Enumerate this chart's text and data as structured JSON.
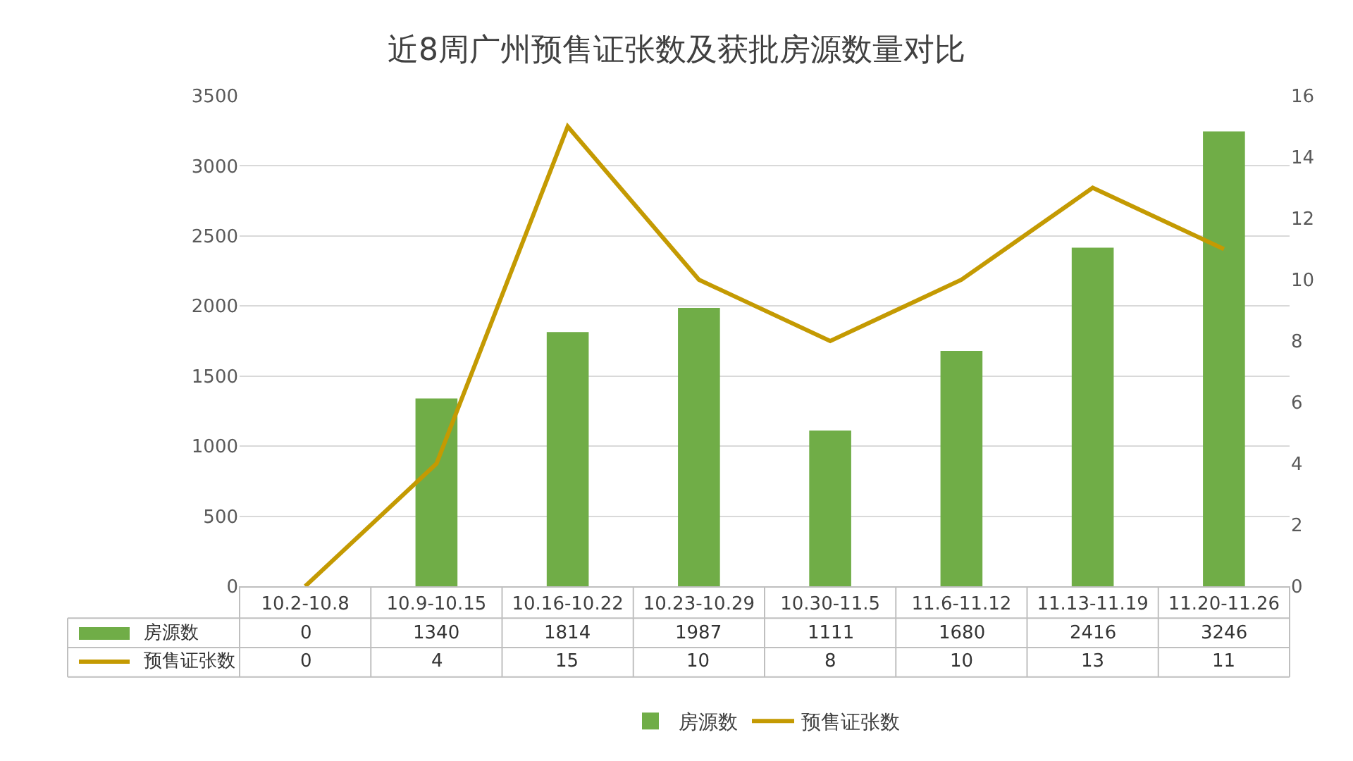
{
  "chart_data": {
    "type": "bar",
    "title": "近8周广州预售证张数及获批房源数量对比",
    "categories": [
      "10.2-10.8",
      "10.9-10.15",
      "10.16-10.22",
      "10.23-10.29",
      "10.30-11.5",
      "11.6-11.12",
      "11.13-11.19",
      "11.20-11.26"
    ],
    "series": [
      {
        "name": "房源数",
        "color": "#70ad47",
        "values": [
          0,
          1340,
          1814,
          1987,
          1111,
          1680,
          2416,
          3246
        ]
      },
      {
        "name": "预售证张数",
        "type": "line",
        "axis": "y2",
        "color": "#c49a02",
        "values": [
          0,
          4,
          15,
          10,
          8,
          10,
          13,
          11
        ]
      }
    ],
    "ylim": [
      0,
      3500
    ],
    "yticks": [
      0,
      500,
      1000,
      1500,
      2000,
      2500,
      3000,
      3500
    ],
    "y2lim": [
      0,
      16
    ],
    "y2ticks": [
      0,
      2,
      4,
      6,
      8,
      10,
      12,
      14,
      16
    ],
    "grid": "y",
    "legend": "bottom",
    "data_labels": true,
    "marker": "none",
    "line_style": "solid"
  }
}
